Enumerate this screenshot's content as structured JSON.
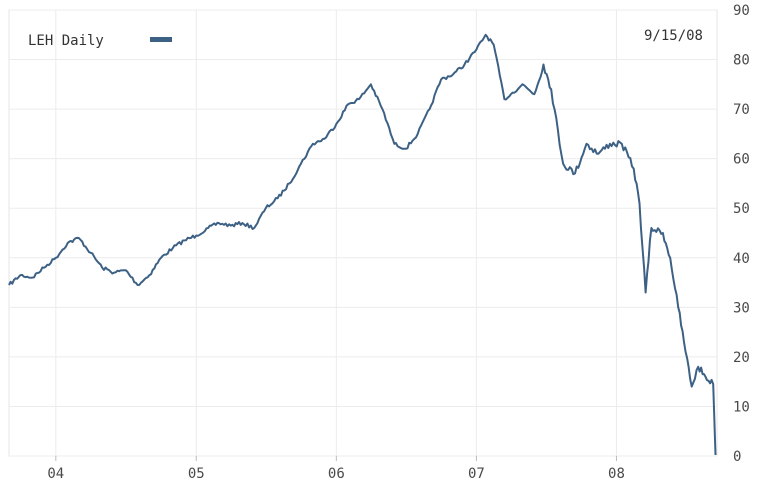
{
  "chart_data": {
    "type": "line",
    "legend": {
      "label": "LEH Daily",
      "position": "top-left"
    },
    "date_label": "9/15/08",
    "x_ticks": [
      {
        "label": "04",
        "date": "2004-01-01"
      },
      {
        "label": "05",
        "date": "2005-01-01"
      },
      {
        "label": "06",
        "date": "2006-01-01"
      },
      {
        "label": "07",
        "date": "2007-01-01"
      },
      {
        "label": "08",
        "date": "2008-01-01"
      }
    ],
    "xlim": [
      "2003-09-01",
      "2008-09-19"
    ],
    "y_ticks": [
      0,
      10,
      20,
      30,
      40,
      50,
      60,
      70,
      80,
      90
    ],
    "ylim": [
      0,
      90
    ],
    "y_axis_position": "right",
    "grid": true,
    "series": [
      {
        "color": "#3d6185",
        "points": [
          [
            "2003-09-01",
            34.5
          ],
          [
            "2003-10-01",
            36.5
          ],
          [
            "2003-11-01",
            36
          ],
          [
            "2003-12-01",
            38
          ],
          [
            "2004-01-01",
            40
          ],
          [
            "2004-02-01",
            43
          ],
          [
            "2004-03-01",
            44
          ],
          [
            "2004-04-01",
            41
          ],
          [
            "2004-05-01",
            38
          ],
          [
            "2004-06-01",
            37
          ],
          [
            "2004-07-01",
            37.5
          ],
          [
            "2004-08-01",
            34.5
          ],
          [
            "2004-09-01",
            36.5
          ],
          [
            "2004-10-01",
            40
          ],
          [
            "2004-11-01",
            42
          ],
          [
            "2004-12-01",
            43.5
          ],
          [
            "2005-01-01",
            44.5
          ],
          [
            "2005-02-01",
            46
          ],
          [
            "2005-03-01",
            47
          ],
          [
            "2005-04-01",
            46.5
          ],
          [
            "2005-05-01",
            47
          ],
          [
            "2005-06-01",
            46
          ],
          [
            "2005-07-01",
            50
          ],
          [
            "2005-08-01",
            52
          ],
          [
            "2005-09-01",
            55
          ],
          [
            "2005-10-01",
            59
          ],
          [
            "2005-11-01",
            63
          ],
          [
            "2005-12-01",
            64
          ],
          [
            "2006-01-01",
            67
          ],
          [
            "2006-02-01",
            71
          ],
          [
            "2006-03-01",
            72
          ],
          [
            "2006-04-01",
            75
          ],
          [
            "2006-05-01",
            70
          ],
          [
            "2006-06-01",
            63
          ],
          [
            "2006-07-01",
            62
          ],
          [
            "2006-08-01",
            65
          ],
          [
            "2006-09-01",
            70
          ],
          [
            "2006-10-01",
            76
          ],
          [
            "2006-11-01",
            77
          ],
          [
            "2006-12-01",
            79
          ],
          [
            "2007-01-01",
            82
          ],
          [
            "2007-01-25",
            85
          ],
          [
            "2007-02-15",
            83
          ],
          [
            "2007-03-15",
            72
          ],
          [
            "2007-04-01",
            73
          ],
          [
            "2007-05-01",
            75
          ],
          [
            "2007-06-01",
            73
          ],
          [
            "2007-06-25",
            79
          ],
          [
            "2007-07-15",
            74
          ],
          [
            "2007-08-15",
            59
          ],
          [
            "2007-09-15",
            57
          ],
          [
            "2007-10-15",
            63
          ],
          [
            "2007-11-15",
            61
          ],
          [
            "2007-12-15",
            63
          ],
          [
            "2008-01-15",
            63
          ],
          [
            "2008-02-15",
            58
          ],
          [
            "2008-03-01",
            51
          ],
          [
            "2008-03-17",
            33
          ],
          [
            "2008-04-01",
            46
          ],
          [
            "2008-05-01",
            45
          ],
          [
            "2008-05-20",
            40
          ],
          [
            "2008-06-10",
            30
          ],
          [
            "2008-06-25",
            23
          ],
          [
            "2008-07-15",
            14
          ],
          [
            "2008-08-01",
            18
          ],
          [
            "2008-08-20",
            16
          ],
          [
            "2008-09-09",
            14.5
          ],
          [
            "2008-09-15",
            0.2
          ]
        ]
      }
    ]
  }
}
